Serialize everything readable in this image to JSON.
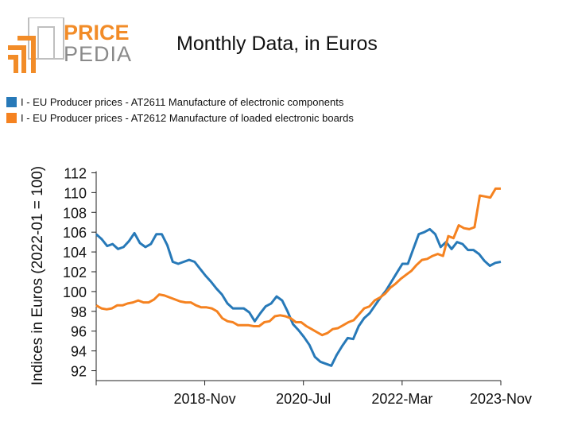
{
  "logo": {
    "word1": "PRICE",
    "word2": "PEDIA"
  },
  "chart_data": {
    "type": "line",
    "title": "Monthly Data, in Euros",
    "ylabel": "Indices in Euros (2022-01 = 100)",
    "xlabel": "",
    "ylim": [
      91,
      113
    ],
    "yticks": [
      92,
      94,
      96,
      98,
      100,
      102,
      104,
      106,
      108,
      110,
      112
    ],
    "xticks": [
      {
        "label": "",
        "month": 0
      },
      {
        "label": "2018-Nov",
        "month": 22
      },
      {
        "label": "2020-Jul",
        "month": 42
      },
      {
        "label": "2022-Mar",
        "month": 62
      },
      {
        "label": "2023-Nov",
        "month": 82
      }
    ],
    "series": [
      {
        "name": "I - EU Producer prices - AT2611 Manufacture of electronic components",
        "color": "#2779b8",
        "values": [
          105.8,
          105.3,
          104.6,
          104.8,
          104.3,
          104.5,
          105.1,
          105.9,
          104.9,
          104.5,
          104.8,
          105.8,
          105.8,
          104.7,
          103.0,
          102.8,
          103.0,
          103.2,
          103.0,
          102.3,
          101.6,
          101.0,
          100.3,
          99.7,
          98.8,
          98.3,
          98.3,
          98.3,
          97.9,
          97.0,
          97.8,
          98.5,
          98.8,
          99.5,
          99.1,
          98.0,
          96.7,
          96.1,
          95.4,
          94.6,
          93.4,
          92.9,
          92.7,
          92.5,
          93.6,
          94.5,
          95.3,
          95.2,
          96.5,
          97.3,
          97.8,
          98.6,
          99.4,
          100.1,
          101.0,
          101.9,
          102.8,
          102.8,
          104.3,
          105.8,
          106.0,
          106.3,
          105.8,
          104.5,
          105.0,
          104.3,
          105.0,
          104.8,
          104.2,
          104.2,
          103.8,
          103.1,
          102.6,
          102.9,
          103.0
        ]
      },
      {
        "name": "I - EU Producer prices - AT2612 Manufacture of loaded electronic boards",
        "color": "#f58220",
        "values": [
          98.6,
          98.3,
          98.2,
          98.3,
          98.6,
          98.6,
          98.8,
          98.9,
          99.1,
          98.9,
          98.9,
          99.2,
          99.7,
          99.6,
          99.4,
          99.2,
          99.0,
          98.9,
          98.9,
          98.6,
          98.4,
          98.4,
          98.3,
          98.0,
          97.3,
          97.0,
          96.9,
          96.6,
          96.6,
          96.6,
          96.5,
          96.5,
          96.9,
          97.0,
          97.5,
          97.6,
          97.5,
          97.3,
          96.9,
          96.9,
          96.5,
          96.2,
          95.9,
          95.6,
          95.8,
          96.2,
          96.3,
          96.6,
          96.9,
          97.1,
          97.7,
          98.3,
          98.5,
          99.1,
          99.4,
          99.8,
          100.4,
          100.8,
          101.3,
          101.7,
          102.1,
          102.7,
          103.2,
          103.3,
          103.6,
          103.8,
          103.6,
          105.6,
          105.4,
          106.7,
          106.4,
          106.3,
          106.5,
          109.7,
          109.6,
          109.5,
          110.4,
          110.4
        ]
      }
    ]
  }
}
